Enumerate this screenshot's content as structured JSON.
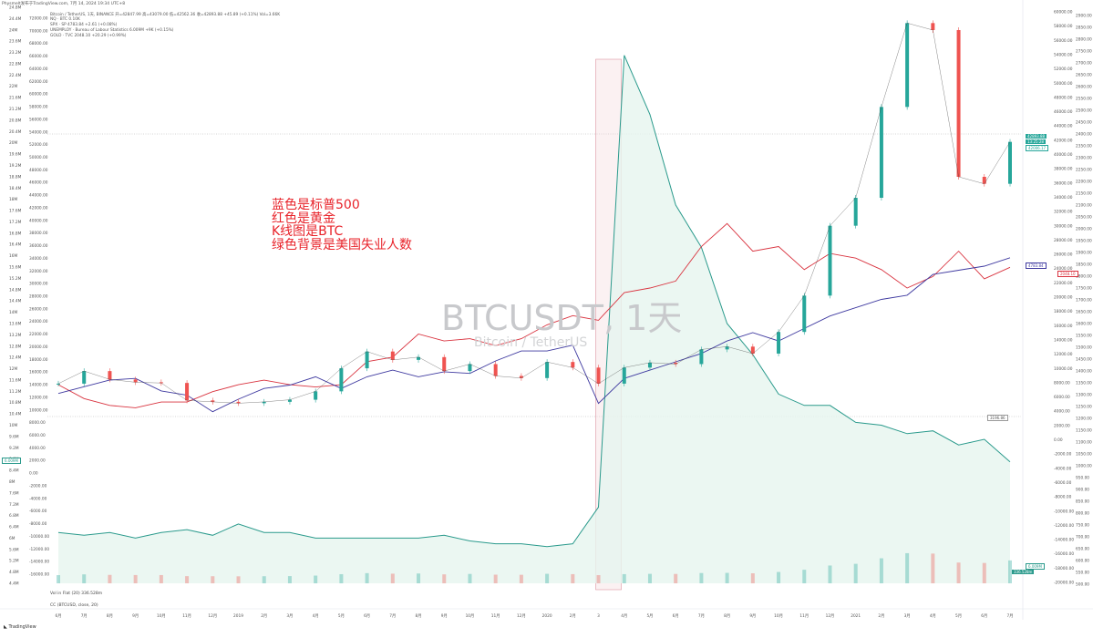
{
  "header": {
    "title": "Physmelt发布于TradingView.com, 7月 14, 2024 19:34 UTC+8"
  },
  "legend": {
    "main": "Bitcoin / TetherUS, 1天, BINANCE 开=42847.99 高=43079.00 低=42562.36 收=42893.88 +45.89 (+0.11%) Vol=3.66K",
    "spx": "NQ · BTC 0.10K",
    "spx2": "SPX · SP 4783.84 +2.61 (+0.08%)",
    "unemploy": "UNEMPLOY · Bureau of Labour Statistics 6.009M +9K (+0.15%)",
    "gold": "GOLD · TVC 2048.10 +20.29 (+0.99%)"
  },
  "annotation": {
    "line1": "蓝色是标普500",
    "line2": "红色是黄金",
    "line3": "K线图是BTC",
    "line4": "绿色背景是美国失业人数"
  },
  "watermark": {
    "symbol": "BTCUSDT, 1天",
    "name": "Bitcoin / TetherUS"
  },
  "indicators": {
    "vol": "Vol in Flat (20)  336.528m",
    "cc": "CC (BTCUSD, close, 20)"
  },
  "brand": "TradingView",
  "price_tags": {
    "btc": "42893.88",
    "btc2": "13:25:28",
    "btc3": "42006.17",
    "spx": "4783.84",
    "gold": "2048.10",
    "unemploy": "6.009M",
    "vol": "336.528m",
    "left_low": "6.009M",
    "mid_tag": "3196.86"
  },
  "colors": {
    "spx": "#3f3aa0",
    "gold": "#d9333f",
    "unemploy": "#2a9a8c",
    "unemploy_fill": "#e6f5ef",
    "btc_up": "#26a69a",
    "btc_down": "#ef5350",
    "highlight": "#f4d6db"
  },
  "chart_data": {
    "type": "line",
    "x": [
      "6月",
      "7月",
      "8月",
      "9月",
      "10月",
      "11月",
      "12月",
      "2019",
      "2月",
      "3月",
      "4月",
      "5月",
      "6月",
      "7月",
      "8月",
      "9月",
      "10月",
      "11月",
      "12月",
      "2020",
      "2月",
      "3",
      "4月",
      "5月",
      "6月",
      "7月",
      "8月",
      "9月",
      "10月",
      "11月",
      "12月",
      "2021",
      "2月",
      "3月",
      "4月",
      "5月",
      "6月",
      "7月"
    ],
    "axes": {
      "left_unemploy": [
        "24.8M",
        "24.4M",
        "24M",
        "23.6M",
        "23.2M",
        "22.8M",
        "22.4M",
        "22M",
        "21.6M",
        "21.2M",
        "20.8M",
        "20.4M",
        "20M",
        "19.6M",
        "19.2M",
        "18.8M",
        "18.4M",
        "18M",
        "17.6M",
        "17.2M",
        "16.8M",
        "16.4M",
        "16M",
        "15.6M",
        "15.2M",
        "14.8M",
        "14.4M",
        "14M",
        "13.6M",
        "13.2M",
        "12.8M",
        "12.4M",
        "12M",
        "11.6M",
        "11.2M",
        "10.8M",
        "10.4M",
        "10M",
        "9.6M",
        "9.2M",
        "8.8M",
        "8.4M",
        "8M",
        "7.6M",
        "7.2M",
        "6.8M",
        "6.4M",
        "6M",
        "5.6M",
        "5.2M",
        "4.8M",
        "4.4M"
      ],
      "left_btc": [
        "72000.00",
        "70000.00",
        "68000.00",
        "66000.00",
        "64000.00",
        "62000.00",
        "60000.00",
        "58000.00",
        "56000.00",
        "54000.00",
        "52000.00",
        "50000.00",
        "48000.00",
        "46000.00",
        "44000.00",
        "42000.00",
        "40000.00",
        "38000.00",
        "36000.00",
        "34000.00",
        "32000.00",
        "30000.00",
        "28000.00",
        "26000.00",
        "24000.00",
        "22000.00",
        "20000.00",
        "18000.00",
        "16000.00",
        "14000.00",
        "12000.00",
        "10000.00",
        "8000.00",
        "6000.00",
        "4000.00",
        "2000.00",
        "0.00",
        "-2000.00",
        "-4000.00",
        "-6000.00",
        "-8000.00",
        "-10000.00",
        "-12000.00",
        "-14000.00",
        "-16000.00"
      ],
      "right_btc": [
        "60000.00",
        "58000.00",
        "56000.00",
        "54000.00",
        "52000.00",
        "50000.00",
        "48000.00",
        "46000.00",
        "44000.00",
        "42000.00",
        "40000.00",
        "38000.00",
        "36000.00",
        "34000.00",
        "32000.00",
        "30000.00",
        "28000.00",
        "26000.00",
        "24000.00",
        "22000.00",
        "20000.00",
        "18000.00",
        "16000.00",
        "14000.00",
        "12000.00",
        "10000.00",
        "8000.00",
        "6000.00",
        "4000.00",
        "2000.00",
        "0.00",
        "-2000.00",
        "-4000.00",
        "-6000.00",
        "-8000.00",
        "-10000.00",
        "-12000.00",
        "-14000.00",
        "-16000.00",
        "-18000.00",
        "-20000.00"
      ],
      "right_gold": [
        "2900.00",
        "2850.00",
        "2800.00",
        "2750.00",
        "2700.00",
        "2650.00",
        "2600.00",
        "2550.00",
        "2500.00",
        "2450.00",
        "2400.00",
        "2350.00",
        "2300.00",
        "2250.00",
        "2200.00",
        "2150.00",
        "2100.00",
        "2050.00",
        "2000.00",
        "1950.00",
        "1900.00",
        "1850.00",
        "1800.00",
        "1750.00",
        "1700.00",
        "1650.00",
        "1600.00",
        "1550.00",
        "1500.00",
        "1450.00",
        "1400.00",
        "1350.00",
        "1300.00",
        "1250.00",
        "1200.00",
        "1150.00",
        "1100.00",
        "1050.00",
        "1000.00",
        "950.00",
        "900.00",
        "850.00",
        "800.00",
        "750.00",
        "700.00",
        "650.00",
        "600.00",
        "550.00",
        "500.00"
      ]
    },
    "series": [
      {
        "name": "SPX",
        "values": [
          2720,
          2800,
          2880,
          2900,
          2750,
          2700,
          2500,
          2650,
          2780,
          2820,
          2920,
          2780,
          2920,
          3000,
          2920,
          2980,
          2960,
          3110,
          3230,
          3230,
          3300,
          2600,
          2900,
          3000,
          3100,
          3200,
          3350,
          3450,
          3350,
          3500,
          3650,
          3750,
          3850,
          3900,
          4150,
          4200,
          4250,
          4350
        ]
      },
      {
        "name": "GOLD",
        "values": [
          1300,
          1240,
          1210,
          1200,
          1225,
          1225,
          1270,
          1300,
          1320,
          1300,
          1290,
          1300,
          1400,
          1420,
          1520,
          1490,
          1500,
          1470,
          1500,
          1560,
          1600,
          1580,
          1700,
          1720,
          1750,
          1900,
          2000,
          1880,
          1900,
          1800,
          1870,
          1850,
          1800,
          1720,
          1770,
          1880,
          1760,
          1810
        ]
      },
      {
        "name": "UNEMPLOY",
        "values": [
          6.2,
          6.1,
          6.2,
          6.0,
          6.2,
          6.3,
          6.1,
          6.5,
          6.2,
          6.2,
          6.0,
          6.0,
          6.0,
          6.0,
          6.0,
          6.1,
          5.9,
          5.8,
          5.8,
          5.7,
          5.8,
          7.1,
          23.1,
          21.0,
          17.8,
          16.3,
          13.6,
          12.5,
          11.1,
          10.7,
          10.7,
          10.1,
          10.0,
          9.7,
          9.8,
          9.3,
          9.5,
          8.7
        ]
      },
      {
        "name": "BTCUSDT",
        "values": [
          6400,
          8200,
          7000,
          6600,
          6500,
          4000,
          3800,
          3600,
          3800,
          4100,
          5300,
          8600,
          11000,
          9800,
          10200,
          8200,
          9200,
          7500,
          7200,
          9500,
          8700,
          6400,
          8700,
          9400,
          9200,
          11300,
          11700,
          10700,
          13800,
          19000,
          29000,
          33000,
          46000,
          58000,
          57000,
          36000,
          35000,
          41000
        ]
      }
    ]
  }
}
